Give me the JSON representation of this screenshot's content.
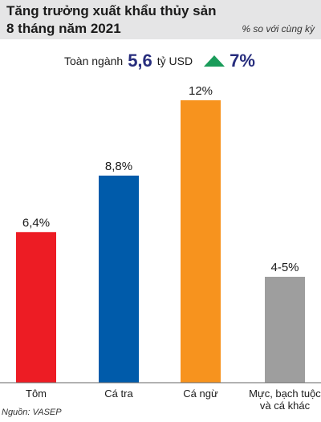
{
  "header": {
    "title_line_1": "Tăng trưởng xuất khẩu thủy sản",
    "title_line_2": "8 tháng năm 2021",
    "note": "% so với cùng kỳ"
  },
  "summary": {
    "label": "Toàn ngành",
    "value": "5,6",
    "unit": "tỷ USD",
    "growth": "7%",
    "arrow_icon": "up-arrow-icon",
    "arrow_color": "#1a9c5a"
  },
  "chart_data": {
    "type": "bar",
    "categories": [
      [
        "Tôm"
      ],
      [
        "Cá tra"
      ],
      [
        "Cá ngừ"
      ],
      [
        "Mực, bạch tuộc",
        "và cá khác"
      ]
    ],
    "values": [
      6.4,
      8.8,
      12,
      4.5
    ],
    "data_labels": [
      "6,4%",
      "8,8%",
      "12%",
      "4-5%"
    ],
    "colors": [
      "#ed1c24",
      "#005baa",
      "#f7931e",
      "#9e9e9e"
    ],
    "ylim": [
      0,
      12
    ],
    "grid": false,
    "title": "",
    "xlabel": "",
    "ylabel": ""
  },
  "source": "Nguồn: VASEP"
}
